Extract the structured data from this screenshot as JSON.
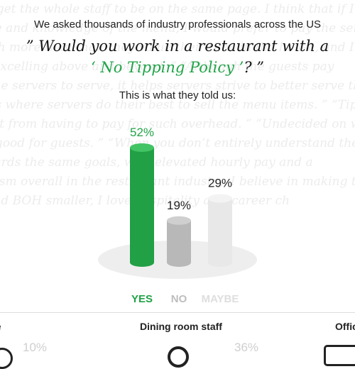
{
  "header": {
    "intro": "We asked thousands of industry professionals across the US",
    "question_open": "” Would you work in a restaurant with a",
    "policy_name": "‘ No Tipping Policy ’",
    "question_close": "? ”",
    "subtitle": "This is what they told us:"
  },
  "colors": {
    "yes": "#22a046",
    "no": "#b8b8b8",
    "maybe": "#e8e8e8",
    "accent": "#20a347"
  },
  "chart_data": {
    "type": "bar",
    "categories": [
      "YES",
      "NO",
      "MAYBE"
    ],
    "values": [
      52,
      19,
      29
    ],
    "value_labels": [
      "52%",
      "19%",
      "29%"
    ],
    "label_colors": [
      "#20a347",
      "#222222",
      "#222222"
    ],
    "category_colors": [
      "#20a347",
      "#bdbdbd",
      "#dedede"
    ],
    "title": "",
    "xlabel": "",
    "ylabel": "",
    "ylim": [
      0,
      52
    ],
    "grid": false
  },
  "bottom_tabs": {
    "left": "se",
    "center": "Dining room staff",
    "right": "Offic"
  },
  "bottom_values": {
    "left": "10%",
    "right": "36%"
  },
  "icons": {
    "left": "chef-hat-icon",
    "center": "dining-staff-icon",
    "right": "office-monitor-icon"
  },
  "background_quotes": [
    "t to get the whole staff to be on the same page. I think that if I feel",
    "rvice and knowledge of the menu, I would prefer to pay the service provi",
    "much more than that, they value their time in the house, and I believe th",
    "ve, excelling above and beyond. ” “Although the guests pay",
    "ys the servers to serve, it helps servers strive to better serve the gues",
    "hat’s where servers do their best to sell the menu items. ” “Tip",
    "erant from having to pay for such overhead. ” “Undecided on whether",
    "ess good for guests. ” “When you don’t entirely understand the idea, whate",
    "towards the same goals, with elevated hourly pay and a",
    "rvalism overall in the restaurant industry. I believe in making the w",
    "H and BOH smaller, I love hospitality as a career ch"
  ]
}
